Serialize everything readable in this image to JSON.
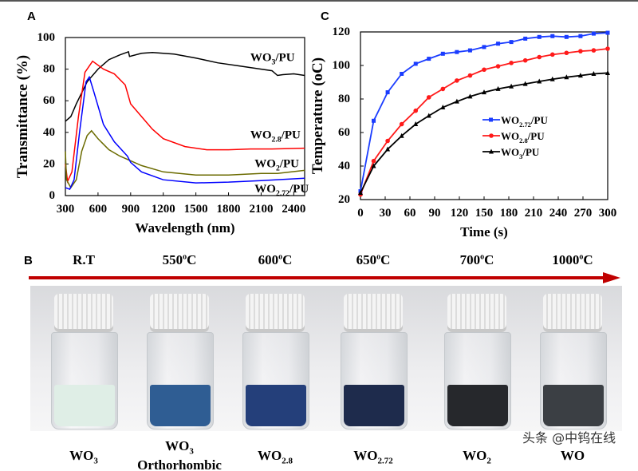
{
  "panels": {
    "a": "A",
    "b": "B",
    "c": "C"
  },
  "chart_data": [
    {
      "type": "line",
      "panel": "A",
      "xlabel": "Wavelength (nm)",
      "ylabel": "Transmittance (%)",
      "xlim": [
        300,
        2500
      ],
      "ylim": [
        0,
        100
      ],
      "xticks": [
        300,
        600,
        900,
        1200,
        1500,
        1800,
        2100,
        2400
      ],
      "yticks": [
        0,
        20,
        40,
        60,
        80,
        100
      ],
      "series": [
        {
          "name": "WO3/PU",
          "color": "#000000",
          "label_at": [
            2000,
            85
          ],
          "points": [
            [
              300,
              47
            ],
            [
              350,
              50
            ],
            [
              400,
              58
            ],
            [
              500,
              72
            ],
            [
              600,
              80
            ],
            [
              700,
              86
            ],
            [
              800,
              89
            ],
            [
              880,
              91
            ],
            [
              890,
              88
            ],
            [
              1000,
              90
            ],
            [
              1100,
              90.5
            ],
            [
              1300,
              89.5
            ],
            [
              1500,
              87
            ],
            [
              1700,
              84
            ],
            [
              1900,
              82
            ],
            [
              2100,
              80
            ],
            [
              2200,
              79
            ],
            [
              2250,
              76
            ],
            [
              2300,
              76.5
            ],
            [
              2400,
              77
            ],
            [
              2500,
              76
            ]
          ]
        },
        {
          "name": "WO2.8/PU",
          "color": "#ff0000",
          "label_at": [
            2000,
            36
          ],
          "points": [
            [
              300,
              20
            ],
            [
              320,
              9
            ],
            [
              360,
              15
            ],
            [
              420,
              50
            ],
            [
              480,
              78
            ],
            [
              550,
              85
            ],
            [
              650,
              80
            ],
            [
              750,
              77
            ],
            [
              850,
              70
            ],
            [
              900,
              58
            ],
            [
              1000,
              50
            ],
            [
              1100,
              42
            ],
            [
              1200,
              36
            ],
            [
              1400,
              31
            ],
            [
              1600,
              29
            ],
            [
              1800,
              29
            ],
            [
              2000,
              29.5
            ],
            [
              2200,
              29.5
            ],
            [
              2500,
              30
            ]
          ]
        },
        {
          "name": "WO2/PU",
          "color": "#6b6b00",
          "label_at": [
            2040,
            18
          ],
          "points": [
            [
              300,
              28
            ],
            [
              310,
              10
            ],
            [
              350,
              5
            ],
            [
              400,
              10
            ],
            [
              450,
              28
            ],
            [
              500,
              38
            ],
            [
              540,
              41
            ],
            [
              600,
              36
            ],
            [
              700,
              29
            ],
            [
              800,
              25
            ],
            [
              1000,
              19
            ],
            [
              1200,
              15
            ],
            [
              1500,
              13
            ],
            [
              1800,
              13
            ],
            [
              2100,
              14
            ],
            [
              2250,
              14
            ],
            [
              2500,
              16
            ]
          ]
        },
        {
          "name": "WO2.72/PU",
          "color": "#0000ff",
          "label_at": [
            2040,
            2
          ],
          "points": [
            [
              300,
              5
            ],
            [
              340,
              4
            ],
            [
              380,
              10
            ],
            [
              430,
              40
            ],
            [
              490,
              72
            ],
            [
              520,
              75
            ],
            [
              560,
              66
            ],
            [
              650,
              45
            ],
            [
              750,
              34
            ],
            [
              870,
              25
            ],
            [
              900,
              21
            ],
            [
              1000,
              15
            ],
            [
              1200,
              10
            ],
            [
              1500,
              8
            ],
            [
              1800,
              8.5
            ],
            [
              2100,
              9.5
            ],
            [
              2500,
              11
            ]
          ]
        }
      ]
    },
    {
      "type": "line",
      "panel": "C",
      "xlabel": "Time (s)",
      "ylabel": "Temperature (oC)",
      "xlim": [
        0,
        300
      ],
      "ylim": [
        20,
        120
      ],
      "xticks": [
        0,
        30,
        60,
        90,
        120,
        150,
        180,
        210,
        240,
        270,
        300
      ],
      "yticks": [
        20,
        40,
        60,
        80,
        100,
        120
      ],
      "legend": "center-right",
      "x": [
        0,
        16,
        33,
        50,
        67,
        83,
        100,
        117,
        133,
        150,
        167,
        183,
        200,
        217,
        233,
        250,
        267,
        283,
        300
      ],
      "series": [
        {
          "name": "WO2.72/PU",
          "color": "#1a3cff",
          "marker": "square",
          "values": [
            25,
            67,
            84,
            95,
            101,
            104,
            107,
            108,
            109,
            111,
            113,
            114,
            116,
            117,
            117.5,
            117,
            117.5,
            119,
            119.5
          ]
        },
        {
          "name": "WO2.8/PU",
          "color": "#ff1a1a",
          "marker": "circle",
          "values": [
            23,
            43,
            55,
            65,
            73,
            81,
            86,
            91,
            94,
            97.5,
            99.5,
            101.5,
            103,
            105,
            106.5,
            107.5,
            108.5,
            109,
            110
          ]
        },
        {
          "name": "WO3/PU",
          "color": "#000000",
          "marker": "triangle",
          "values": [
            24,
            40,
            50,
            58,
            65,
            70,
            75,
            78.5,
            81.5,
            84,
            86,
            87.5,
            89,
            90.5,
            91.8,
            93,
            94,
            95,
            95.5
          ]
        }
      ]
    }
  ],
  "photo": {
    "temperatures": [
      {
        "t": "R.T",
        "sup": ""
      },
      {
        "t": "550",
        "sup": "o",
        "u": "C"
      },
      {
        "t": "600",
        "sup": "o",
        "u": "C"
      },
      {
        "t": "650",
        "sup": "o",
        "u": "C"
      },
      {
        "t": "700",
        "sup": "o",
        "u": "C"
      },
      {
        "t": "1000",
        "sup": "o",
        "u": "C"
      }
    ],
    "arrow_color": "#c00000",
    "vials": [
      {
        "base": "WO",
        "sub": "3",
        "line2": "",
        "powder": "#dfeee6"
      },
      {
        "base": "WO",
        "sub": "3",
        "line2": "Orthorhombic",
        "powder": "#2f5d93"
      },
      {
        "base": "WO",
        "sub": "2.8",
        "line2": "",
        "powder": "#243f7a"
      },
      {
        "base": "WO",
        "sub": "2.72",
        "line2": "",
        "powder": "#1e2b4c"
      },
      {
        "base": "WO",
        "sub": "2",
        "line2": "",
        "powder": "#26282c"
      },
      {
        "base": "WO",
        "sub": "",
        "line2": "",
        "powder": "#3b3f44"
      }
    ]
  },
  "watermark": "头条 @中钨在线"
}
